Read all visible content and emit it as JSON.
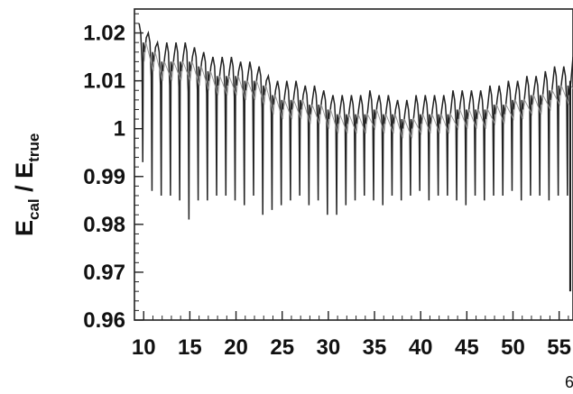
{
  "chart_data": {
    "type": "line",
    "title": "",
    "ylabel": {
      "main": "E",
      "sub1": "cal",
      "sep": " / E",
      "sub2": "true"
    },
    "xlabel": "",
    "xlabel_fragment": "6",
    "xlim": [
      9,
      56.5
    ],
    "ylim": [
      0.96,
      1.025
    ],
    "x_ticks": [
      10,
      15,
      20,
      25,
      30,
      35,
      40,
      45,
      50,
      55
    ],
    "y_ticks": [
      0.96,
      0.97,
      0.98,
      0.99,
      1,
      1.01,
      1.02
    ],
    "y_tick_labels": [
      "0.96",
      "0.97",
      "0.98",
      "0.99",
      "1",
      "1.01",
      "1.02"
    ],
    "grid": false,
    "series": [
      {
        "color": "#222222",
        "x_start": 9.5,
        "x_step": 1,
        "upper": [
          1.022,
          1.02,
          1.018,
          1.018,
          1.018,
          1.018,
          1.017,
          1.016,
          1.015,
          1.015,
          1.015,
          1.014,
          1.014,
          1.013,
          1.011,
          1.01,
          1.01,
          1.01,
          1.009,
          1.009,
          1.008,
          1.007,
          1.007,
          1.007,
          1.007,
          1.008,
          1.007,
          1.007,
          1.006,
          1.006,
          1.007,
          1.007,
          1.007,
          1.007,
          1.008,
          1.008,
          1.008,
          1.008,
          1.009,
          1.009,
          1.01,
          1.01,
          1.011,
          1.011,
          1.012,
          1.013,
          1.013,
          1.015
        ],
        "lower": [
          0.993,
          0.987,
          0.986,
          0.986,
          0.985,
          0.981,
          0.985,
          0.985,
          0.986,
          0.986,
          0.985,
          0.984,
          0.986,
          0.982,
          0.983,
          0.984,
          0.985,
          0.986,
          0.984,
          0.985,
          0.982,
          0.982,
          0.984,
          0.985,
          0.986,
          0.985,
          0.984,
          0.986,
          0.985,
          0.986,
          0.987,
          0.985,
          0.986,
          0.986,
          0.985,
          0.984,
          0.986,
          0.985,
          0.986,
          0.986,
          0.987,
          0.985,
          0.986,
          0.986,
          0.985,
          0.986,
          0.986,
          0.987
        ]
      }
    ],
    "outlier": {
      "x": 56.2,
      "low": 0.966,
      "high": 1.01
    }
  }
}
